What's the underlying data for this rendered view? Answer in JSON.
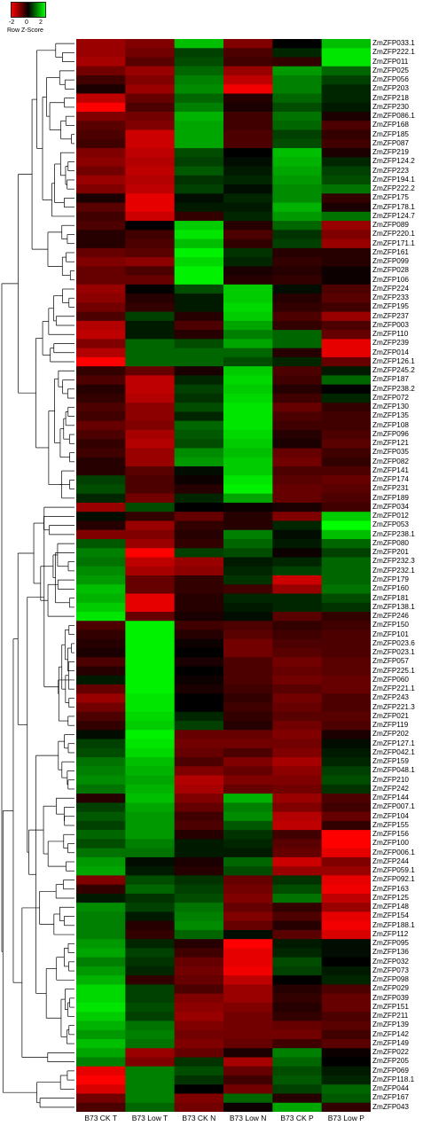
{
  "chart_data": {
    "type": "heatmap",
    "color_key": {
      "title": "Row Z-Score",
      "ticks": [
        "-2",
        "0",
        "2"
      ],
      "low_color": "#ff0000",
      "mid_color": "#000000",
      "high_color": "#00ff00"
    },
    "columns": [
      "B73 CK T",
      "B73 Low T",
      "B73 CK N",
      "B73 Low N",
      "B73 CK P",
      "B73 Low P"
    ],
    "rows": [
      {
        "name": "ZmZFP033.1",
        "z": [
          -1.2,
          -1.0,
          1.5,
          -1.0,
          0,
          1.5
        ]
      },
      {
        "name": "ZmZFP222.1",
        "z": [
          -1.2,
          -0.9,
          0.5,
          -0.6,
          0.3,
          1.8
        ]
      },
      {
        "name": "ZmZFP011",
        "z": [
          -1.3,
          -0.7,
          0.6,
          -0.5,
          -0.4,
          1.8
        ]
      },
      {
        "name": "ZmZFP025",
        "z": [
          -0.9,
          -1.2,
          0.8,
          -1.2,
          1.2,
          0.8
        ]
      },
      {
        "name": "ZmZFP056",
        "z": [
          -0.5,
          -1.0,
          1.0,
          -1.5,
          1.0,
          0.5
        ]
      },
      {
        "name": "ZmZFP203",
        "z": [
          -0.2,
          -1.2,
          1.1,
          -1.9,
          1.0,
          0.3
        ]
      },
      {
        "name": "ZmZFP218",
        "z": [
          -1.5,
          -0.8,
          0.8,
          -0.3,
          0.8,
          0.3
        ]
      },
      {
        "name": "ZmZFP230",
        "z": [
          -2.0,
          -0.6,
          1.0,
          -0.2,
          0.6,
          0.2
        ]
      },
      {
        "name": "ZmZFP086.1",
        "z": [
          -1.0,
          -0.9,
          1.4,
          -0.5,
          0.9,
          -0.2
        ]
      },
      {
        "name": "ZmZFP168",
        "z": [
          -0.7,
          -1.0,
          1.3,
          -0.5,
          0.8,
          -0.6
        ]
      },
      {
        "name": "ZmZFP185",
        "z": [
          -0.6,
          -1.6,
          1.3,
          -0.6,
          0.5,
          -0.4
        ]
      },
      {
        "name": "ZmZFP087",
        "z": [
          -0.5,
          -1.6,
          1.3,
          -0.6,
          0.6,
          -0.5
        ]
      },
      {
        "name": "ZmZFP219",
        "z": [
          -1.0,
          -1.5,
          0.6,
          0,
          1.5,
          -0.2
        ]
      },
      {
        "name": "ZmZFP124.2",
        "z": [
          -1.1,
          -1.4,
          0.5,
          0.1,
          1.4,
          0.3
        ]
      },
      {
        "name": "ZmZFP223",
        "z": [
          -0.9,
          -1.5,
          0.7,
          0.2,
          1.3,
          0.5
        ]
      },
      {
        "name": "ZmZFP194.1",
        "z": [
          -1.2,
          -1.4,
          0.4,
          0.3,
          1.2,
          0.6
        ]
      },
      {
        "name": "ZmZFP222.2",
        "z": [
          -1.0,
          -1.5,
          0.5,
          0.1,
          1.1,
          0.9
        ]
      },
      {
        "name": "ZmZFP175",
        "z": [
          -0.2,
          -1.8,
          0.1,
          0.3,
          1.1,
          -0.4
        ]
      },
      {
        "name": "ZmZFP178.1",
        "z": [
          -0.7,
          -1.8,
          0.2,
          0.2,
          1.4,
          -0.2
        ]
      },
      {
        "name": "ZmZFP124.7",
        "z": [
          -0.5,
          -1.6,
          -0.4,
          0.3,
          1.2,
          0.9
        ]
      },
      {
        "name": "ZmZFP089",
        "z": [
          -0.6,
          0,
          1.6,
          -0.3,
          0.8,
          -1.2
        ]
      },
      {
        "name": "ZmZFP220.1",
        "z": [
          -0.3,
          -0.5,
          1.8,
          -0.6,
          0.4,
          -1.0
        ]
      },
      {
        "name": "ZmZFP171.1",
        "z": [
          -0.3,
          -0.6,
          1.5,
          -0.4,
          0.5,
          -1.2
        ]
      },
      {
        "name": "ZmZFP161",
        "z": [
          -0.8,
          -0.7,
          1.9,
          0.4,
          -0.3,
          -0.3
        ]
      },
      {
        "name": "ZmZFP099",
        "z": [
          -1.0,
          -1.1,
          1.7,
          0.3,
          -0.4,
          -0.3
        ]
      },
      {
        "name": "ZmZFP028",
        "z": [
          -0.8,
          -0.6,
          1.9,
          -0.2,
          -0.3,
          -0.1
        ]
      },
      {
        "name": "ZmZFP106",
        "z": [
          -0.8,
          -0.8,
          1.9,
          -0.3,
          -0.4,
          -0.1
        ]
      },
      {
        "name": "ZmZFP224",
        "z": [
          -1.2,
          0,
          0.6,
          1.6,
          0.1,
          -0.6
        ]
      },
      {
        "name": "ZmZFP233",
        "z": [
          -1.1,
          -0.3,
          0.2,
          1.6,
          -0.3,
          -0.7
        ]
      },
      {
        "name": "ZmZFP195",
        "z": [
          -0.9,
          -0.4,
          0.2,
          1.7,
          -0.4,
          -0.5
        ]
      },
      {
        "name": "ZmZFP237",
        "z": [
          -0.6,
          0.5,
          -0.3,
          1.6,
          -0.6,
          -1.2
        ]
      },
      {
        "name": "ZmZFP003",
        "z": [
          -1.4,
          0.2,
          -0.6,
          1.3,
          -0.4,
          -0.6
        ]
      },
      {
        "name": "ZmZFP110",
        "z": [
          -1.5,
          0.2,
          -0.3,
          1.0,
          0.8,
          -0.8
        ]
      },
      {
        "name": "ZmZFP239",
        "z": [
          -1.0,
          0.8,
          0.6,
          1.3,
          0.8,
          -1.8
        ]
      },
      {
        "name": "ZmZFP014",
        "z": [
          -1.4,
          0.8,
          0.8,
          0.8,
          -0.3,
          -1.8
        ]
      },
      {
        "name": "ZmZFP126.1",
        "z": [
          -2.0,
          0.8,
          0.8,
          0.6,
          0.3,
          -0.8
        ]
      },
      {
        "name": "ZmZFP245.2",
        "z": [
          -0.4,
          -0.8,
          -0.2,
          1.6,
          -0.6,
          0.2
        ]
      },
      {
        "name": "ZmZFP187",
        "z": [
          -0.6,
          -1.5,
          0.3,
          1.7,
          -0.5,
          0.8
        ]
      },
      {
        "name": "ZmZFP238.2",
        "z": [
          -0.3,
          -1.5,
          0.5,
          1.6,
          -0.3,
          0
        ]
      },
      {
        "name": "ZmZFP072",
        "z": [
          -0.4,
          -1.4,
          0.4,
          1.7,
          -0.5,
          0.3
        ]
      },
      {
        "name": "ZmZFP130",
        "z": [
          -0.6,
          -1.1,
          0.6,
          1.8,
          -0.8,
          -0.4
        ]
      },
      {
        "name": "ZmZFP135",
        "z": [
          -0.5,
          -1.1,
          0.3,
          1.8,
          -0.6,
          -0.5
        ]
      },
      {
        "name": "ZmZFP108",
        "z": [
          -0.8,
          -1.0,
          0.8,
          1.8,
          -0.5,
          -0.5
        ]
      },
      {
        "name": "ZmZFP096",
        "z": [
          -0.6,
          -1.3,
          0.7,
          1.7,
          -0.3,
          -0.6
        ]
      },
      {
        "name": "ZmZFP121",
        "z": [
          -0.4,
          -1.4,
          0.6,
          1.6,
          -0.2,
          -0.7
        ]
      },
      {
        "name": "ZmZFP035",
        "z": [
          -0.5,
          -1.2,
          1.1,
          1.5,
          -0.8,
          -0.5
        ]
      },
      {
        "name": "ZmZFP082",
        "z": [
          -0.3,
          -1.2,
          1.2,
          1.6,
          -0.9,
          -0.4
        ]
      },
      {
        "name": "ZmZFP141",
        "z": [
          -0.3,
          -0.7,
          0.1,
          1.6,
          -0.6,
          -0.6
        ]
      },
      {
        "name": "ZmZFP174",
        "z": [
          0.5,
          -0.6,
          -0.1,
          1.8,
          -0.7,
          -0.8
        ]
      },
      {
        "name": "ZmZFP231",
        "z": [
          0.6,
          -0.6,
          -0.3,
          1.9,
          -0.8,
          -0.7
        ]
      },
      {
        "name": "ZmZFP189",
        "z": [
          0.3,
          -0.9,
          0.3,
          1.3,
          -0.8,
          -0.6
        ]
      },
      {
        "name": "ZmZFP034",
        "z": [
          -1.2,
          0.6,
          0,
          -0.1,
          -0.2,
          -0.5
        ]
      },
      {
        "name": "ZmZFP012",
        "z": [
          0.1,
          -0.4,
          -0.8,
          -0.3,
          -1.0,
          1.6
        ]
      },
      {
        "name": "ZmZFP053",
        "z": [
          -0.3,
          -1.2,
          -0.4,
          -0.3,
          0.3,
          2.0
        ]
      },
      {
        "name": "ZmZFP238.1",
        "z": [
          -1.0,
          -1.0,
          -0.3,
          1.0,
          0.1,
          1.5
        ]
      },
      {
        "name": "ZmZFP080",
        "z": [
          0.7,
          -1.2,
          -0.4,
          0.8,
          0.2,
          0.8
        ]
      },
      {
        "name": "ZmZFP201",
        "z": [
          1.0,
          -2.0,
          0.5,
          0.6,
          -0.1,
          0.5
        ]
      },
      {
        "name": "ZmZFP232.3",
        "z": [
          0.9,
          -1.5,
          -1.2,
          0.2,
          0.3,
          0.8
        ]
      },
      {
        "name": "ZmZFP232.1",
        "z": [
          1.1,
          -1.3,
          -1.1,
          0.3,
          0.5,
          0.8
        ]
      },
      {
        "name": "ZmZFP179",
        "z": [
          1.2,
          -0.8,
          -0.4,
          0.4,
          -1.6,
          0.8
        ]
      },
      {
        "name": "ZmZFP160",
        "z": [
          1.5,
          -0.8,
          -0.4,
          -0.5,
          -1.2,
          0.9
        ]
      },
      {
        "name": "ZmZFP181",
        "z": [
          1.4,
          -1.8,
          -0.3,
          0.3,
          0.3,
          0.6
        ]
      },
      {
        "name": "ZmZFP138.1",
        "z": [
          1.6,
          -1.8,
          -0.3,
          0.2,
          0.3,
          0.4
        ]
      },
      {
        "name": "ZmZFP246",
        "z": [
          1.8,
          -0.8,
          -0.2,
          0.1,
          -0.7,
          -0.4
        ]
      },
      {
        "name": "ZmZFP150",
        "z": [
          -0.6,
          1.9,
          -0.5,
          -0.6,
          -0.4,
          -0.5
        ]
      },
      {
        "name": "ZmZFP101",
        "z": [
          -0.4,
          1.9,
          -0.3,
          -0.7,
          -0.5,
          -0.6
        ]
      },
      {
        "name": "ZmZFP023.6",
        "z": [
          -0.3,
          1.9,
          -0.1,
          -0.9,
          -0.6,
          -0.6
        ]
      },
      {
        "name": "ZmZFP023.1",
        "z": [
          -0.2,
          1.9,
          0,
          -0.9,
          -0.7,
          -0.6
        ]
      },
      {
        "name": "ZmZFP057",
        "z": [
          -0.6,
          1.9,
          -0.2,
          -0.6,
          -0.9,
          -0.7
        ]
      },
      {
        "name": "ZmZFP225.1",
        "z": [
          -0.3,
          1.9,
          0,
          -0.6,
          -0.8,
          -0.7
        ]
      },
      {
        "name": "ZmZFP060",
        "z": [
          0.2,
          1.9,
          -0.1,
          -0.6,
          -0.9,
          -0.8
        ]
      },
      {
        "name": "ZmZFP221.1",
        "z": [
          -0.8,
          1.9,
          -0.2,
          -0.5,
          -0.7,
          -0.8
        ]
      },
      {
        "name": "ZmZFP243",
        "z": [
          -1.2,
          1.8,
          0,
          -0.4,
          -0.9,
          -0.6
        ]
      },
      {
        "name": "ZmZFP221.3",
        "z": [
          -0.9,
          1.8,
          0,
          -0.5,
          -0.8,
          -0.6
        ]
      },
      {
        "name": "ZmZFP021",
        "z": [
          -0.6,
          1.7,
          0.3,
          -0.4,
          -0.7,
          -0.7
        ]
      },
      {
        "name": "ZmZFP119",
        "z": [
          -0.4,
          1.6,
          0.5,
          -0.3,
          -0.9,
          -0.6
        ]
      },
      {
        "name": "ZmZFP202",
        "z": [
          0.1,
          1.9,
          -0.8,
          -0.8,
          -1.0,
          -0.2
        ]
      },
      {
        "name": "ZmZFP127.1",
        "z": [
          0.5,
          1.8,
          -0.9,
          -0.9,
          -0.9,
          0.1
        ]
      },
      {
        "name": "ZmZFP042.1",
        "z": [
          0.6,
          1.7,
          -0.8,
          -0.6,
          -1.0,
          0.2
        ]
      },
      {
        "name": "ZmZFP159",
        "z": [
          0.9,
          1.5,
          -0.6,
          -1.0,
          -1.3,
          0.3
        ]
      },
      {
        "name": "ZmZFP048.1",
        "z": [
          1.0,
          1.4,
          -1.0,
          -0.8,
          -1.1,
          0.5
        ]
      },
      {
        "name": "ZmZFP210",
        "z": [
          1.1,
          1.3,
          -1.4,
          -1.0,
          -1.0,
          0.6
        ]
      },
      {
        "name": "ZmZFP242",
        "z": [
          0.9,
          1.4,
          -1.3,
          -0.8,
          -0.9,
          0.4
        ]
      },
      {
        "name": "ZmZFP144",
        "z": [
          -0.3,
          1.5,
          -1.0,
          1.4,
          -1.2,
          -0.6
        ]
      },
      {
        "name": "ZmZFP007.1",
        "z": [
          0.5,
          1.3,
          -0.8,
          1.0,
          -1.0,
          -0.5
        ]
      },
      {
        "name": "ZmZFP104",
        "z": [
          0.7,
          1.2,
          -0.5,
          1.1,
          -1.4,
          -0.8
        ]
      },
      {
        "name": "ZmZFP155",
        "z": [
          0.5,
          1.2,
          -0.6,
          0.7,
          -1.5,
          -0.4
        ]
      },
      {
        "name": "ZmZFP156",
        "z": [
          0.8,
          1.2,
          -0.3,
          0.4,
          -0.5,
          -2.0
        ]
      },
      {
        "name": "ZmZFP100",
        "z": [
          0.6,
          1.0,
          0.2,
          0.3,
          -0.7,
          -2.0
        ]
      },
      {
        "name": "ZmZFP006.1",
        "z": [
          0.9,
          0.9,
          0.2,
          0.2,
          -0.8,
          -1.8
        ]
      },
      {
        "name": "ZmZFP244",
        "z": [
          1.2,
          0.1,
          -0.2,
          0.8,
          -1.6,
          -1.0
        ]
      },
      {
        "name": "ZmZFP059.1",
        "z": [
          1.3,
          0.2,
          -0.3,
          0.6,
          -1.2,
          -1.2
        ]
      },
      {
        "name": "ZmZFP092.1",
        "z": [
          -1.0,
          0.6,
          0.4,
          -0.8,
          0.4,
          -1.8
        ]
      },
      {
        "name": "ZmZFP163",
        "z": [
          -0.4,
          0.8,
          0.5,
          -0.9,
          0.6,
          -1.9
        ]
      },
      {
        "name": "ZmZFP125",
        "z": [
          0.2,
          0.4,
          0.6,
          -1.0,
          0.9,
          -1.5
        ]
      },
      {
        "name": "ZmZFP148",
        "z": [
          1.1,
          0.5,
          0.9,
          -0.8,
          -0.4,
          -1.2
        ]
      },
      {
        "name": "ZmZFP154",
        "z": [
          1.0,
          0.2,
          1.0,
          -1.0,
          -0.6,
          -1.8
        ]
      },
      {
        "name": "ZmZFP188.1",
        "z": [
          1.0,
          -0.3,
          1.1,
          -0.8,
          -0.3,
          -1.9
        ]
      },
      {
        "name": "ZmZFP112",
        "z": [
          1.0,
          -0.4,
          0.8,
          0.1,
          -0.7,
          -1.7
        ]
      },
      {
        "name": "ZmZFP095",
        "z": [
          1.2,
          0.3,
          -0.3,
          -2.0,
          0.2,
          0.1
        ]
      },
      {
        "name": "ZmZFP136",
        "z": [
          1.3,
          0.5,
          -0.5,
          -1.8,
          0.3,
          0.1
        ]
      },
      {
        "name": "ZmZFP032",
        "z": [
          1.0,
          0.4,
          -0.8,
          -1.8,
          0.6,
          0
        ]
      },
      {
        "name": "ZmZFP073",
        "z": [
          1.2,
          0.3,
          -0.9,
          -1.9,
          0.5,
          0.2
        ]
      },
      {
        "name": "ZmZFP098",
        "z": [
          1.4,
          -0.4,
          -0.8,
          -1.5,
          0,
          0.3
        ]
      },
      {
        "name": "ZmZFP029",
        "z": [
          1.7,
          0.5,
          -0.6,
          -1.2,
          -0.3,
          -0.6
        ]
      },
      {
        "name": "ZmZFP039",
        "z": [
          1.7,
          0.5,
          -1.0,
          -1.2,
          -0.4,
          -0.8
        ]
      },
      {
        "name": "ZmZFP151",
        "z": [
          1.8,
          0.6,
          -1.1,
          -1.0,
          -0.3,
          -0.8
        ]
      },
      {
        "name": "ZmZFP211",
        "z": [
          1.6,
          0.5,
          -1.2,
          -0.9,
          -0.4,
          -0.6
        ]
      },
      {
        "name": "ZmZFP139",
        "z": [
          1.4,
          0.9,
          -1.0,
          -0.9,
          -0.8,
          -0.7
        ]
      },
      {
        "name": "ZmZFP142",
        "z": [
          1.2,
          1.0,
          -0.9,
          -0.9,
          -0.9,
          -0.5
        ]
      },
      {
        "name": "ZmZFP149",
        "z": [
          1.5,
          0.9,
          -1.0,
          -0.8,
          -0.5,
          -0.7
        ]
      },
      {
        "name": "ZmZFP022",
        "z": [
          1.3,
          -1.2,
          -0.8,
          -0.2,
          1.0,
          -0.1
        ]
      },
      {
        "name": "ZmZFP205",
        "z": [
          1.0,
          -1.0,
          0.4,
          -1.3,
          0.8,
          0
        ]
      },
      {
        "name": "ZmZFP069",
        "z": [
          -1.8,
          1.0,
          0.6,
          -0.8,
          0.6,
          0.2
        ]
      },
      {
        "name": "ZmZFP118.1",
        "z": [
          -2.0,
          1.0,
          0.4,
          -0.5,
          0.7,
          0.3
        ]
      },
      {
        "name": "ZmZFP044",
        "z": [
          -1.7,
          1.0,
          0,
          -0.9,
          0.5,
          0.8
        ]
      },
      {
        "name": "ZmZFP167",
        "z": [
          -0.9,
          1.0,
          -1.0,
          0.8,
          -0.3,
          0.7
        ]
      },
      {
        "name": "ZmZFP043",
        "z": [
          -0.6,
          0.8,
          -0.9,
          -0.1,
          1.3,
          -0.4
        ]
      }
    ]
  }
}
